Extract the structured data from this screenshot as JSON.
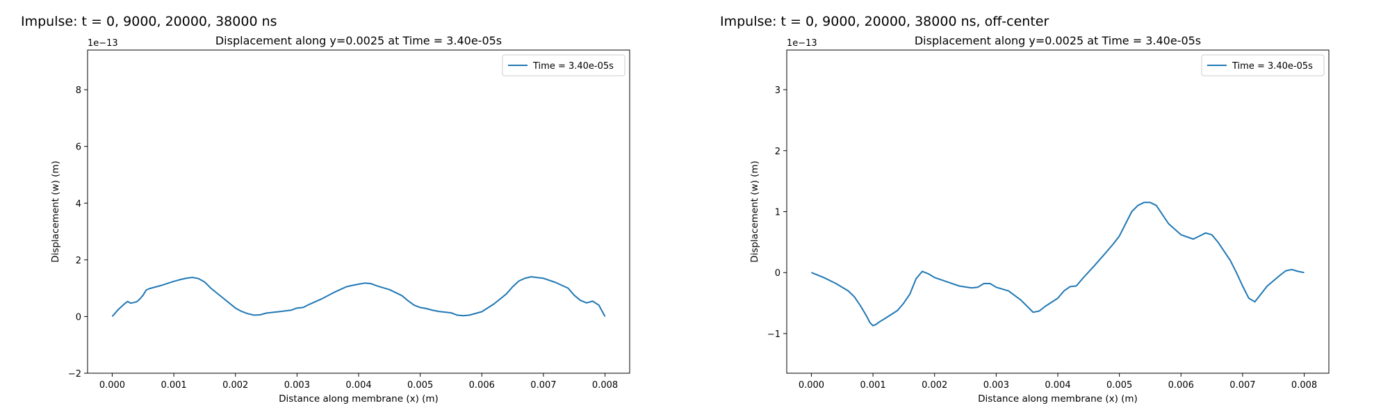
{
  "charts": [
    {
      "figure_title": "Impulse: t = 0, 9000, 20000, 38000 ns",
      "chart_data": {
        "type": "line",
        "title": "Displacement along y=0.0025 at Time = 3.40e-05s",
        "xlabel": "Distance along membrane (x) (m)",
        "ylabel": "Displacement (w) (m)",
        "y_scale_note": "1e−13",
        "xlim": [
          -0.0004,
          0.0084
        ],
        "ylim": [
          -2,
          9.4
        ],
        "xticks": [
          0.0,
          0.001,
          0.002,
          0.003,
          0.004,
          0.005,
          0.006,
          0.007,
          0.008
        ],
        "xtick_labels": [
          "0.000",
          "0.001",
          "0.002",
          "0.003",
          "0.004",
          "0.005",
          "0.006",
          "0.007",
          "0.008"
        ],
        "yticks": [
          -2,
          0,
          2,
          4,
          6,
          8
        ],
        "ytick_labels": [
          "−2",
          "0",
          "2",
          "4",
          "6",
          "8"
        ],
        "grid": false,
        "legend_position": "top-right",
        "series": [
          {
            "name": "Time = 3.40e-05s",
            "color": "#1f77b4",
            "x": [
              0.0,
              0.0001,
              0.0002,
              0.00025,
              0.0003,
              0.0004,
              0.00045,
              0.0005,
              0.00055,
              0.0006,
              0.0008,
              0.001,
              0.0011,
              0.0012,
              0.0013,
              0.0014,
              0.0015,
              0.0016,
              0.0018,
              0.002,
              0.0021,
              0.0022,
              0.0023,
              0.0024,
              0.0025,
              0.0027,
              0.0029,
              0.003,
              0.0031,
              0.0032,
              0.0034,
              0.0036,
              0.0037,
              0.0038,
              0.0039,
              0.004,
              0.0041,
              0.0042,
              0.0043,
              0.0045,
              0.0047,
              0.0048,
              0.0049,
              0.005,
              0.0051,
              0.0052,
              0.0053,
              0.0055,
              0.0056,
              0.0057,
              0.0058,
              0.006,
              0.0062,
              0.0064,
              0.0065,
              0.0066,
              0.0067,
              0.0068,
              0.007,
              0.0072,
              0.0074,
              0.0075,
              0.0076,
              0.0077,
              0.0078,
              0.0079,
              0.008
            ],
            "y": [
              0.0,
              0.25,
              0.45,
              0.53,
              0.47,
              0.52,
              0.62,
              0.75,
              0.93,
              0.98,
              1.1,
              1.24,
              1.3,
              1.35,
              1.38,
              1.34,
              1.22,
              1.0,
              0.65,
              0.3,
              0.18,
              0.1,
              0.05,
              0.06,
              0.12,
              0.17,
              0.22,
              0.3,
              0.32,
              0.43,
              0.62,
              0.85,
              0.95,
              1.05,
              1.1,
              1.14,
              1.18,
              1.16,
              1.08,
              0.95,
              0.74,
              0.56,
              0.4,
              0.32,
              0.28,
              0.22,
              0.18,
              0.13,
              0.05,
              0.03,
              0.05,
              0.17,
              0.45,
              0.8,
              1.05,
              1.25,
              1.35,
              1.4,
              1.35,
              1.2,
              1.0,
              0.75,
              0.57,
              0.48,
              0.54,
              0.4,
              0.0
            ]
          }
        ]
      }
    },
    {
      "figure_title": "Impulse: t = 0, 9000, 20000, 38000 ns, off-center",
      "chart_data": {
        "type": "line",
        "title": "Displacement along y=0.0025 at Time = 3.40e-05s",
        "xlabel": "Distance along membrane (x) (m)",
        "ylabel": "Displacement (w) (m)",
        "y_scale_note": "1e−13",
        "xlim": [
          -0.0004,
          0.0084
        ],
        "ylim": [
          -1.65,
          3.65
        ],
        "xticks": [
          0.0,
          0.001,
          0.002,
          0.003,
          0.004,
          0.005,
          0.006,
          0.007,
          0.008
        ],
        "xtick_labels": [
          "0.000",
          "0.001",
          "0.002",
          "0.003",
          "0.004",
          "0.005",
          "0.006",
          "0.007",
          "0.008"
        ],
        "yticks": [
          -1,
          0,
          1,
          2,
          3
        ],
        "ytick_labels": [
          "−1",
          "0",
          "1",
          "2",
          "3"
        ],
        "grid": false,
        "legend_position": "top-right",
        "series": [
          {
            "name": "Time = 3.40e-05s",
            "color": "#1f77b4",
            "x": [
              0.0,
              0.0002,
              0.0004,
              0.0006,
              0.0007,
              0.0008,
              0.0009,
              0.00095,
              0.001,
              0.00105,
              0.0011,
              0.0012,
              0.0014,
              0.0015,
              0.0016,
              0.0017,
              0.0018,
              0.00185,
              0.0019,
              0.002,
              0.0022,
              0.0024,
              0.0026,
              0.0027,
              0.0028,
              0.0029,
              0.003,
              0.0032,
              0.0034,
              0.0035,
              0.0036,
              0.0037,
              0.0038,
              0.004,
              0.0041,
              0.0042,
              0.0043,
              0.0044,
              0.0046,
              0.0048,
              0.0049,
              0.005,
              0.0051,
              0.0052,
              0.0053,
              0.0054,
              0.0055,
              0.0056,
              0.0057,
              0.0058,
              0.006,
              0.0062,
              0.0063,
              0.0064,
              0.0065,
              0.0066,
              0.0068,
              0.0069,
              0.007,
              0.0071,
              0.0072,
              0.0073,
              0.0074,
              0.0076,
              0.0077,
              0.0078,
              0.0079,
              0.008
            ],
            "y": [
              0.0,
              -0.08,
              -0.18,
              -0.3,
              -0.4,
              -0.55,
              -0.72,
              -0.82,
              -0.87,
              -0.85,
              -0.81,
              -0.75,
              -0.62,
              -0.5,
              -0.35,
              -0.1,
              0.02,
              0.0,
              -0.02,
              -0.08,
              -0.15,
              -0.22,
              -0.25,
              -0.24,
              -0.18,
              -0.18,
              -0.24,
              -0.3,
              -0.45,
              -0.55,
              -0.65,
              -0.63,
              -0.55,
              -0.42,
              -0.3,
              -0.23,
              -0.22,
              -0.1,
              0.12,
              0.35,
              0.47,
              0.6,
              0.8,
              1.0,
              1.1,
              1.15,
              1.15,
              1.1,
              0.95,
              0.8,
              0.62,
              0.55,
              0.6,
              0.65,
              0.62,
              0.5,
              0.2,
              0.0,
              -0.22,
              -0.42,
              -0.48,
              -0.35,
              -0.22,
              -0.05,
              0.03,
              0.05,
              0.02,
              0.0
            ]
          }
        ]
      }
    }
  ]
}
